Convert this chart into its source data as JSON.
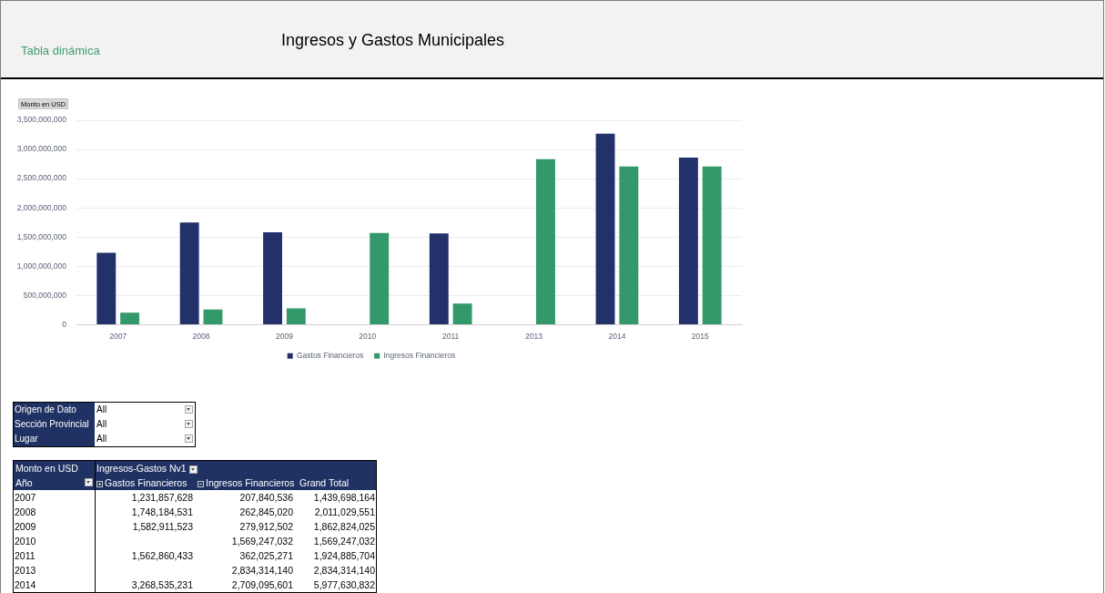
{
  "chart_data": {
    "type": "bar",
    "title": "Ingresos y Gastos Municipales",
    "ylabel": "Monto en USD",
    "categories": [
      "2007",
      "2008",
      "2009",
      "2010",
      "2011",
      "2013",
      "2014",
      "2015"
    ],
    "series": [
      {
        "name": "Gastos Financieros",
        "color": "#22316a",
        "values": [
          1231857628,
          1748184531,
          1582911523,
          null,
          1562860433,
          null,
          3268535231,
          2860000000
        ]
      },
      {
        "name": "Ingresos Financieros",
        "color": "#33996b",
        "values": [
          207840536,
          262845020,
          279912502,
          1569247032,
          362025271,
          2834314140,
          2709095601,
          2710000000
        ]
      }
    ],
    "ylim": [
      0,
      3500000000
    ],
    "yticks": [
      0,
      {
        "value": 500000000,
        "label": "500,000,000"
      },
      {
        "value": 1000000000,
        "label": "1,000,000,000"
      },
      {
        "value": 1500000000,
        "label": "1,500,000,000"
      },
      {
        "value": 2000000000,
        "label": "2,000,000,000"
      },
      {
        "value": 2500000000,
        "label": "2,500,000,000"
      },
      {
        "value": 3000000000,
        "label": "3,000,000,000"
      },
      {
        "value": 3500000000,
        "label": "3,500,000,000"
      }
    ],
    "grid": "y",
    "legend": "bottom",
    "annotations": [
      "Tabla dinámica",
      "Origen de Dato",
      "All",
      "Sección Provincial",
      "All",
      "Lugar",
      "All",
      "Ingresos-Gastos Nv1",
      "Año",
      "Grand Total",
      "1,231,857,628",
      "207,840,536",
      "1,439,698,164",
      "1,748,184,531",
      "262,845,020",
      "2,011,029,551",
      "1,582,911,523",
      "279,912,502",
      "1,862,824,025",
      "1,569,247,032",
      "1,569,247,032",
      "1,562,860,433",
      "362,025,271",
      "1,924,885,704",
      "2,834,314,140",
      "2,834,314,140",
      "3,268,535,231",
      "2,709,095,601",
      "5,977,630,832"
    ]
  }
}
